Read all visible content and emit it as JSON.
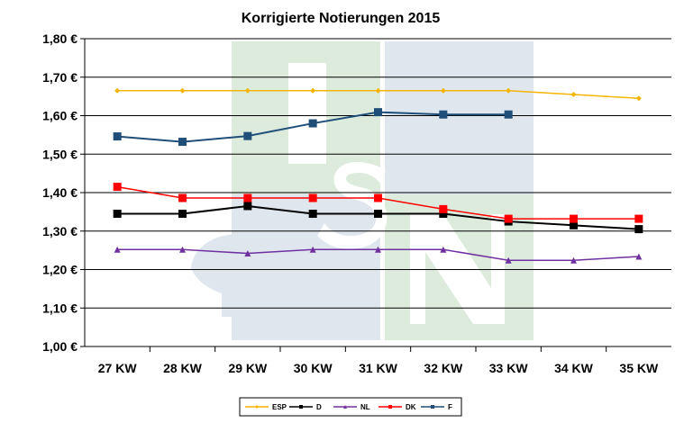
{
  "chart_data": {
    "type": "line",
    "title": "Korrigierte Notierungen 2015",
    "xlabel": "",
    "ylabel": "",
    "categories": [
      "27 KW",
      "28 KW",
      "29 KW",
      "30 KW",
      "31 KW",
      "32 KW",
      "33 KW",
      "34 KW",
      "35 KW"
    ],
    "ylim": [
      1.0,
      1.8
    ],
    "yticks": [
      "1,00 €",
      "1,10 €",
      "1,20 €",
      "1,30 €",
      "1,40 €",
      "1,50 €",
      "1,60 €",
      "1,70 €",
      "1,80 €"
    ],
    "grid": "horizontal",
    "legend_position": "bottom",
    "series": [
      {
        "name": "ESP",
        "color": "#f5b400",
        "marker": "diamond",
        "values": [
          1.665,
          1.665,
          1.665,
          1.665,
          1.665,
          1.665,
          1.665,
          1.655,
          1.645
        ]
      },
      {
        "name": "D",
        "color": "#000000",
        "marker": "square",
        "values": [
          1.345,
          1.345,
          1.365,
          1.345,
          1.345,
          1.345,
          1.325,
          1.315,
          1.305
        ]
      },
      {
        "name": "NL",
        "color": "#7030a0",
        "marker": "triangle",
        "values": [
          1.252,
          1.252,
          1.242,
          1.252,
          1.252,
          1.252,
          1.224,
          1.224,
          1.234
        ]
      },
      {
        "name": "DK",
        "color": "#ff0000",
        "marker": "square",
        "values": [
          1.415,
          1.386,
          1.386,
          1.386,
          1.386,
          1.357,
          1.332,
          1.332,
          1.332
        ]
      },
      {
        "name": "F",
        "color": "#1f4e79",
        "marker": "square",
        "values": [
          1.546,
          1.532,
          1.547,
          1.58,
          1.609,
          1.603,
          1.603,
          null,
          null
        ]
      }
    ]
  }
}
